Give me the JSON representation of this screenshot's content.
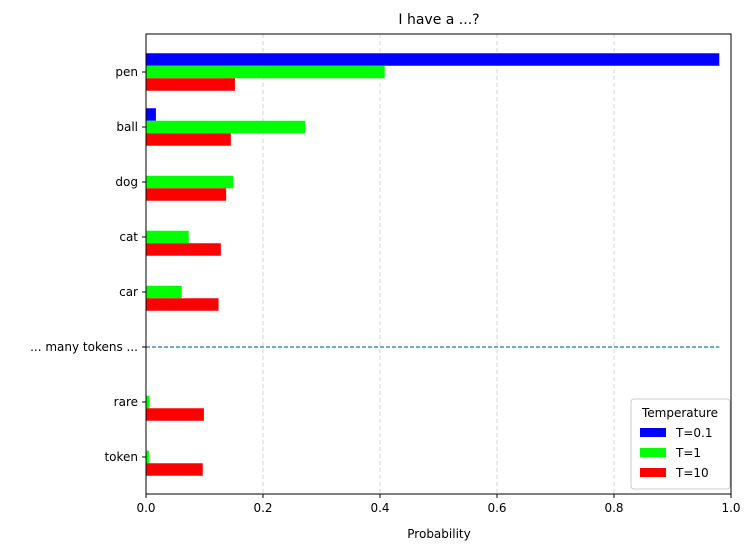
{
  "chart_data": {
    "type": "bar",
    "orientation": "horizontal",
    "title": "I have a ...?",
    "xlabel": "Probability",
    "ylabel": "",
    "xlim": [
      0,
      1.0
    ],
    "x_ticks": [
      0.0,
      0.2,
      0.4,
      0.6,
      0.8,
      1.0
    ],
    "x_tick_labels": [
      "0.0",
      "0.2",
      "0.4",
      "0.6",
      "0.8",
      "1.0"
    ],
    "categories": [
      "pen",
      "ball",
      "dog",
      "cat",
      "car",
      "... many tokens ...",
      "rare",
      "token"
    ],
    "separator_category": "... many tokens ...",
    "grid": "x-dashed",
    "legend": {
      "title": "Temperature",
      "placement": "lower-right"
    },
    "series": [
      {
        "name": "T=0.1",
        "color": "#0000ff",
        "values": [
          0.98,
          0.017,
          0,
          0,
          0,
          null,
          0,
          0
        ]
      },
      {
        "name": "T=1",
        "color": "#00ff00",
        "values": [
          0.408,
          0.272,
          0.149,
          0.073,
          0.061,
          null,
          0.006,
          0.005
        ]
      },
      {
        "name": "T=10",
        "color": "#ff0000",
        "values": [
          0.152,
          0.145,
          0.137,
          0.128,
          0.124,
          null,
          0.099,
          0.097
        ]
      }
    ],
    "separator_line": {
      "x_range": [
        0,
        0.98
      ],
      "color": "#1f77b4",
      "style": "dashed"
    }
  }
}
